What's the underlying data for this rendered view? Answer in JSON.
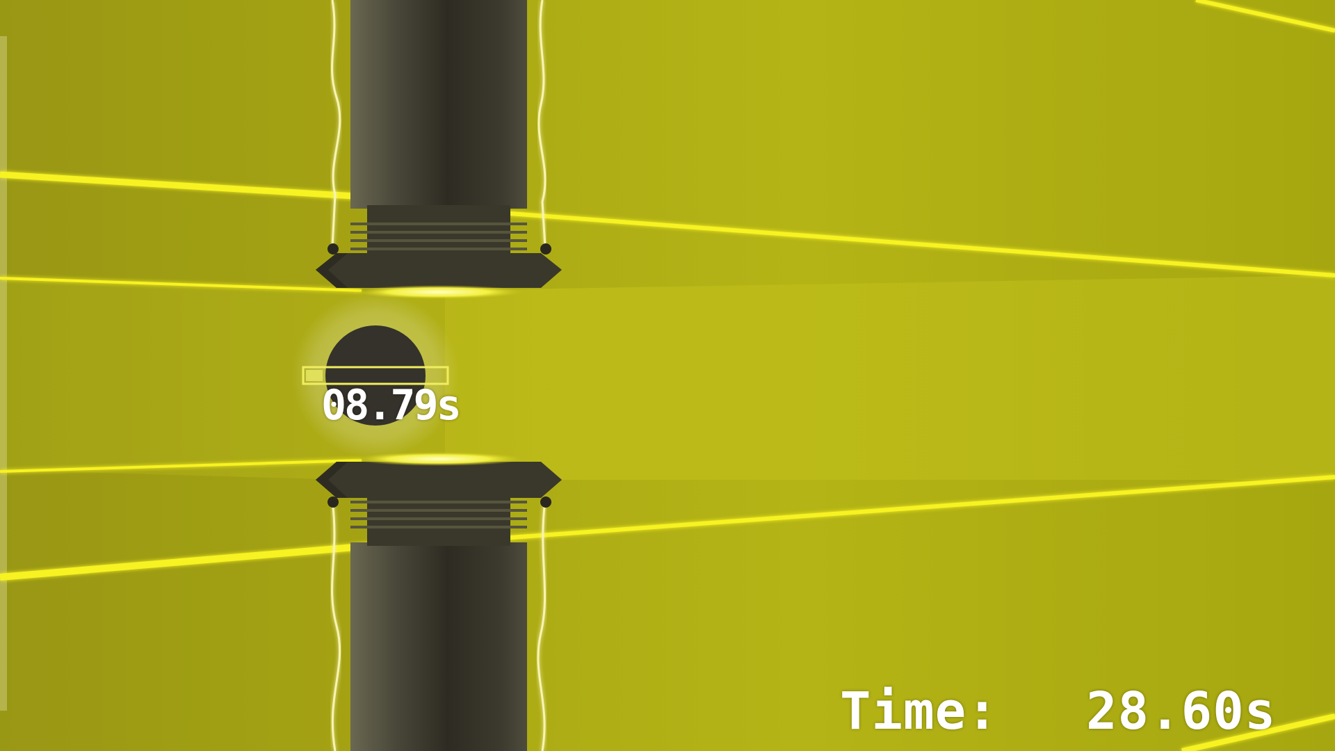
{
  "hud": {
    "timer_label": "Time:",
    "timer_value": "28.60s"
  },
  "orb": {
    "countdown": "08.79s",
    "progress": 0.12
  },
  "colors": {
    "background": "#a8aa12",
    "background_light": "#c4c21a",
    "laser": "#f5f020",
    "pillar": "#3a3828",
    "pillar_highlight": "#6a6650",
    "orb": "#34322a",
    "text": "#ffffff"
  }
}
